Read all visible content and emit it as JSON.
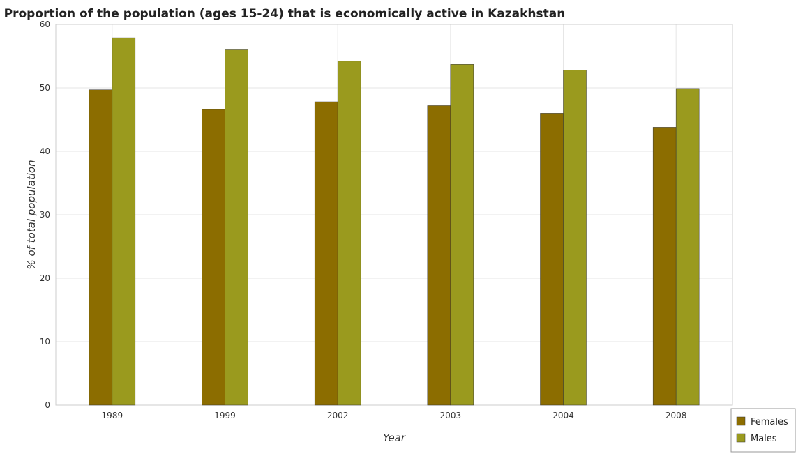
{
  "chart_data": {
    "type": "bar",
    "title": "Proportion of the population (ages 15-24) that is economically active in Kazakhstan",
    "xlabel": "Year",
    "ylabel": "% of total population",
    "categories": [
      "1989",
      "1999",
      "2002",
      "2003",
      "2004",
      "2008"
    ],
    "series": [
      {
        "name": "Females",
        "color": "#8c6d00",
        "values": [
          49.7,
          46.6,
          47.8,
          47.2,
          46.0,
          43.8
        ]
      },
      {
        "name": "Males",
        "color": "#9a9a1e",
        "values": [
          57.9,
          56.1,
          54.2,
          53.7,
          52.8,
          49.9
        ]
      }
    ],
    "ylim": [
      0,
      60
    ],
    "yticks": [
      0,
      10,
      20,
      30,
      40,
      50,
      60
    ],
    "grid": true,
    "legend_position": "bottom-right"
  }
}
